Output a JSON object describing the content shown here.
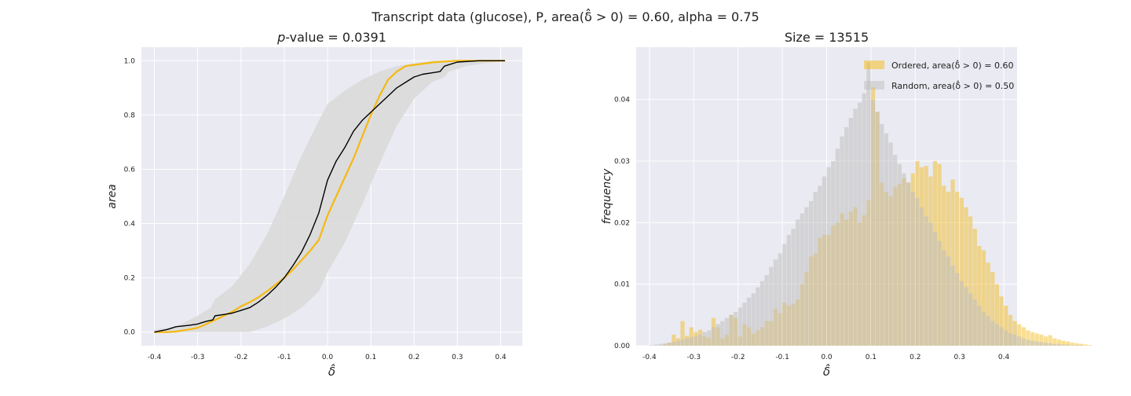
{
  "figure": {
    "suptitle": "Transcript data (glucose), P, area(δ̂ > 0) = 0.60, alpha = 0.75"
  },
  "chart_data": [
    {
      "type": "line",
      "title": "p-value = 0.0391",
      "xlabel": "δ̂",
      "ylabel": "area",
      "xlim": [
        -0.43,
        0.45
      ],
      "ylim": [
        -0.05,
        1.05
      ],
      "xticks": [
        -0.4,
        -0.3,
        -0.2,
        -0.1,
        0.0,
        0.1,
        0.2,
        0.3,
        0.4
      ],
      "xtick_labels": [
        "-0.4",
        "-0.3",
        "-0.2",
        "-0.1",
        "0.0",
        "0.1",
        "0.2",
        "0.3",
        "0.4"
      ],
      "yticks": [
        0.0,
        0.2,
        0.4,
        0.6,
        0.8,
        1.0
      ],
      "ytick_labels": [
        "0.0",
        "0.2",
        "0.4",
        "0.6",
        "0.8",
        "1.0"
      ],
      "grid": true,
      "colors": {
        "background": "#eaeaf2",
        "ordered": "#f5b90f",
        "random": "#000000",
        "band": "#dadada"
      },
      "band": {
        "x": [
          -0.4,
          -0.35,
          -0.3,
          -0.27,
          -0.26,
          -0.22,
          -0.18,
          -0.14,
          -0.1,
          -0.06,
          -0.02,
          0.0,
          0.04,
          0.08,
          0.12,
          0.16,
          0.2,
          0.24,
          0.27,
          0.28,
          0.32,
          0.36,
          0.41
        ],
        "lower": [
          0.0,
          0.0,
          0.0,
          0.0,
          0.0,
          0.0,
          0.0,
          0.02,
          0.05,
          0.09,
          0.15,
          0.22,
          0.33,
          0.47,
          0.62,
          0.76,
          0.86,
          0.92,
          0.94,
          0.96,
          0.98,
          0.99,
          1.0
        ],
        "upper": [
          0.01,
          0.02,
          0.06,
          0.09,
          0.12,
          0.17,
          0.25,
          0.36,
          0.5,
          0.65,
          0.78,
          0.84,
          0.89,
          0.93,
          0.96,
          0.98,
          0.99,
          1.0,
          1.0,
          1.0,
          1.0,
          1.0,
          1.0
        ]
      },
      "series": [
        {
          "label": "ordered",
          "x": [
            -0.4,
            -0.37,
            -0.35,
            -0.32,
            -0.3,
            -0.28,
            -0.26,
            -0.24,
            -0.22,
            -0.2,
            -0.18,
            -0.16,
            -0.14,
            -0.12,
            -0.1,
            -0.08,
            -0.06,
            -0.04,
            -0.02,
            0.0,
            0.02,
            0.04,
            0.06,
            0.08,
            0.1,
            0.12,
            0.14,
            0.16,
            0.18,
            0.2,
            0.25,
            0.3,
            0.35,
            0.41
          ],
          "y": [
            0.0,
            0.0,
            0.002,
            0.01,
            0.016,
            0.03,
            0.045,
            0.06,
            0.075,
            0.095,
            0.11,
            0.128,
            0.15,
            0.175,
            0.2,
            0.23,
            0.265,
            0.3,
            0.34,
            0.43,
            0.5,
            0.57,
            0.64,
            0.72,
            0.8,
            0.87,
            0.93,
            0.96,
            0.98,
            0.985,
            0.995,
            1.0,
            1.0,
            1.0
          ]
        },
        {
          "label": "random",
          "x": [
            -0.4,
            -0.37,
            -0.35,
            -0.32,
            -0.3,
            -0.28,
            -0.265,
            -0.26,
            -0.24,
            -0.22,
            -0.2,
            -0.18,
            -0.16,
            -0.14,
            -0.12,
            -0.1,
            -0.08,
            -0.06,
            -0.04,
            -0.02,
            0.0,
            0.02,
            0.04,
            0.06,
            0.08,
            0.1,
            0.12,
            0.14,
            0.16,
            0.18,
            0.2,
            0.22,
            0.24,
            0.26,
            0.27,
            0.3,
            0.35,
            0.41
          ],
          "y": [
            0.0,
            0.01,
            0.02,
            0.025,
            0.03,
            0.04,
            0.045,
            0.06,
            0.065,
            0.07,
            0.08,
            0.09,
            0.11,
            0.135,
            0.165,
            0.2,
            0.245,
            0.295,
            0.36,
            0.44,
            0.56,
            0.63,
            0.68,
            0.74,
            0.78,
            0.81,
            0.84,
            0.87,
            0.9,
            0.92,
            0.94,
            0.95,
            0.955,
            0.96,
            0.98,
            0.995,
            1.0,
            1.0
          ]
        }
      ]
    },
    {
      "type": "bar",
      "title": "Size = 13515",
      "xlabel": "δ̂",
      "ylabel": "frequency",
      "xlim": [
        -0.43,
        0.43
      ],
      "ylim": [
        0.0,
        0.0485
      ],
      "xticks": [
        -0.4,
        -0.3,
        -0.2,
        -0.1,
        0.0,
        0.1,
        0.2,
        0.3,
        0.4
      ],
      "xtick_labels": [
        "-0.4",
        "-0.3",
        "-0.2",
        "-0.1",
        "0.0",
        "0.1",
        "0.2",
        "0.3",
        "0.4"
      ],
      "yticks": [
        0.0,
        0.01,
        0.02,
        0.03,
        0.04
      ],
      "ytick_labels": [
        "0.00",
        "0.01",
        "0.02",
        "0.03",
        "0.04"
      ],
      "grid": true,
      "legend_position": "top-right",
      "legend": [
        {
          "label": "Ordered, area(δ̂ > 0) = 0.60",
          "color": "#f5b90f"
        },
        {
          "label": "Random, area(δ̂ > 0) = 0.50",
          "color": "#c0c0c0"
        }
      ],
      "colors": {
        "background": "#eaeaf2",
        "ordered": "#f5b90f",
        "random": "#c0c0c0"
      },
      "bin_start": -0.4,
      "bin_width": 0.01,
      "series": [
        {
          "name": "Ordered, area(δ̂ > 0) = 0.60",
          "values": [
            0.0,
            0.0,
            0.0,
            0.0002,
            0.0005,
            0.0018,
            0.0012,
            0.004,
            0.0016,
            0.003,
            0.0022,
            0.0026,
            0.0015,
            0.0013,
            0.0045,
            0.003,
            0.0012,
            0.0018,
            0.005,
            0.0045,
            0.0015,
            0.0035,
            0.003,
            0.002,
            0.0025,
            0.003,
            0.004,
            0.004,
            0.006,
            0.0053,
            0.007,
            0.0065,
            0.0068,
            0.0075,
            0.01,
            0.012,
            0.0145,
            0.015,
            0.0175,
            0.018,
            0.018,
            0.0195,
            0.02,
            0.0215,
            0.0205,
            0.0218,
            0.0225,
            0.02,
            0.0212,
            0.0237,
            0.042,
            0.038,
            0.0265,
            0.025,
            0.0243,
            0.0258,
            0.0263,
            0.0272,
            0.0265,
            0.028,
            0.03,
            0.029,
            0.0292,
            0.0275,
            0.03,
            0.0295,
            0.026,
            0.025,
            0.027,
            0.025,
            0.024,
            0.0225,
            0.021,
            0.019,
            0.0162,
            0.0155,
            0.0135,
            0.012,
            0.01,
            0.008,
            0.0065,
            0.005,
            0.004,
            0.0035,
            0.003,
            0.0025,
            0.0022,
            0.002,
            0.0018,
            0.0015,
            0.0017,
            0.0012,
            0.001,
            0.0008,
            0.0007,
            0.0005,
            0.0004,
            0.0003,
            0.0002,
            0.0001
          ]
        },
        {
          "name": "Random, area(δ̂ > 0) = 0.50",
          "values": [
            0.0001,
            0.0002,
            0.0003,
            0.0004,
            0.0005,
            0.0006,
            0.0008,
            0.001,
            0.0012,
            0.0014,
            0.0016,
            0.0018,
            0.0022,
            0.0025,
            0.003,
            0.0035,
            0.004,
            0.0045,
            0.005,
            0.0055,
            0.0062,
            0.007,
            0.0078,
            0.0085,
            0.0095,
            0.0105,
            0.0115,
            0.0128,
            0.014,
            0.015,
            0.0165,
            0.018,
            0.019,
            0.0205,
            0.0215,
            0.0225,
            0.0235,
            0.025,
            0.026,
            0.0275,
            0.029,
            0.03,
            0.032,
            0.034,
            0.0355,
            0.037,
            0.0385,
            0.0395,
            0.041,
            0.046,
            0.04,
            0.038,
            0.036,
            0.0345,
            0.033,
            0.031,
            0.0295,
            0.028,
            0.0265,
            0.025,
            0.024,
            0.0225,
            0.021,
            0.02,
            0.0185,
            0.017,
            0.0155,
            0.0145,
            0.013,
            0.0118,
            0.0105,
            0.0095,
            0.0085,
            0.0075,
            0.0065,
            0.0055,
            0.0048,
            0.004,
            0.0035,
            0.003,
            0.0025,
            0.002,
            0.0018,
            0.0015,
            0.0012,
            0.001,
            0.0008,
            0.0007,
            0.0006,
            0.0005,
            0.0004,
            0.0003,
            0.0003,
            0.0002,
            0.0002,
            0.0001,
            0.0001,
            0.0001,
            0.0,
            0.0
          ]
        }
      ]
    }
  ]
}
